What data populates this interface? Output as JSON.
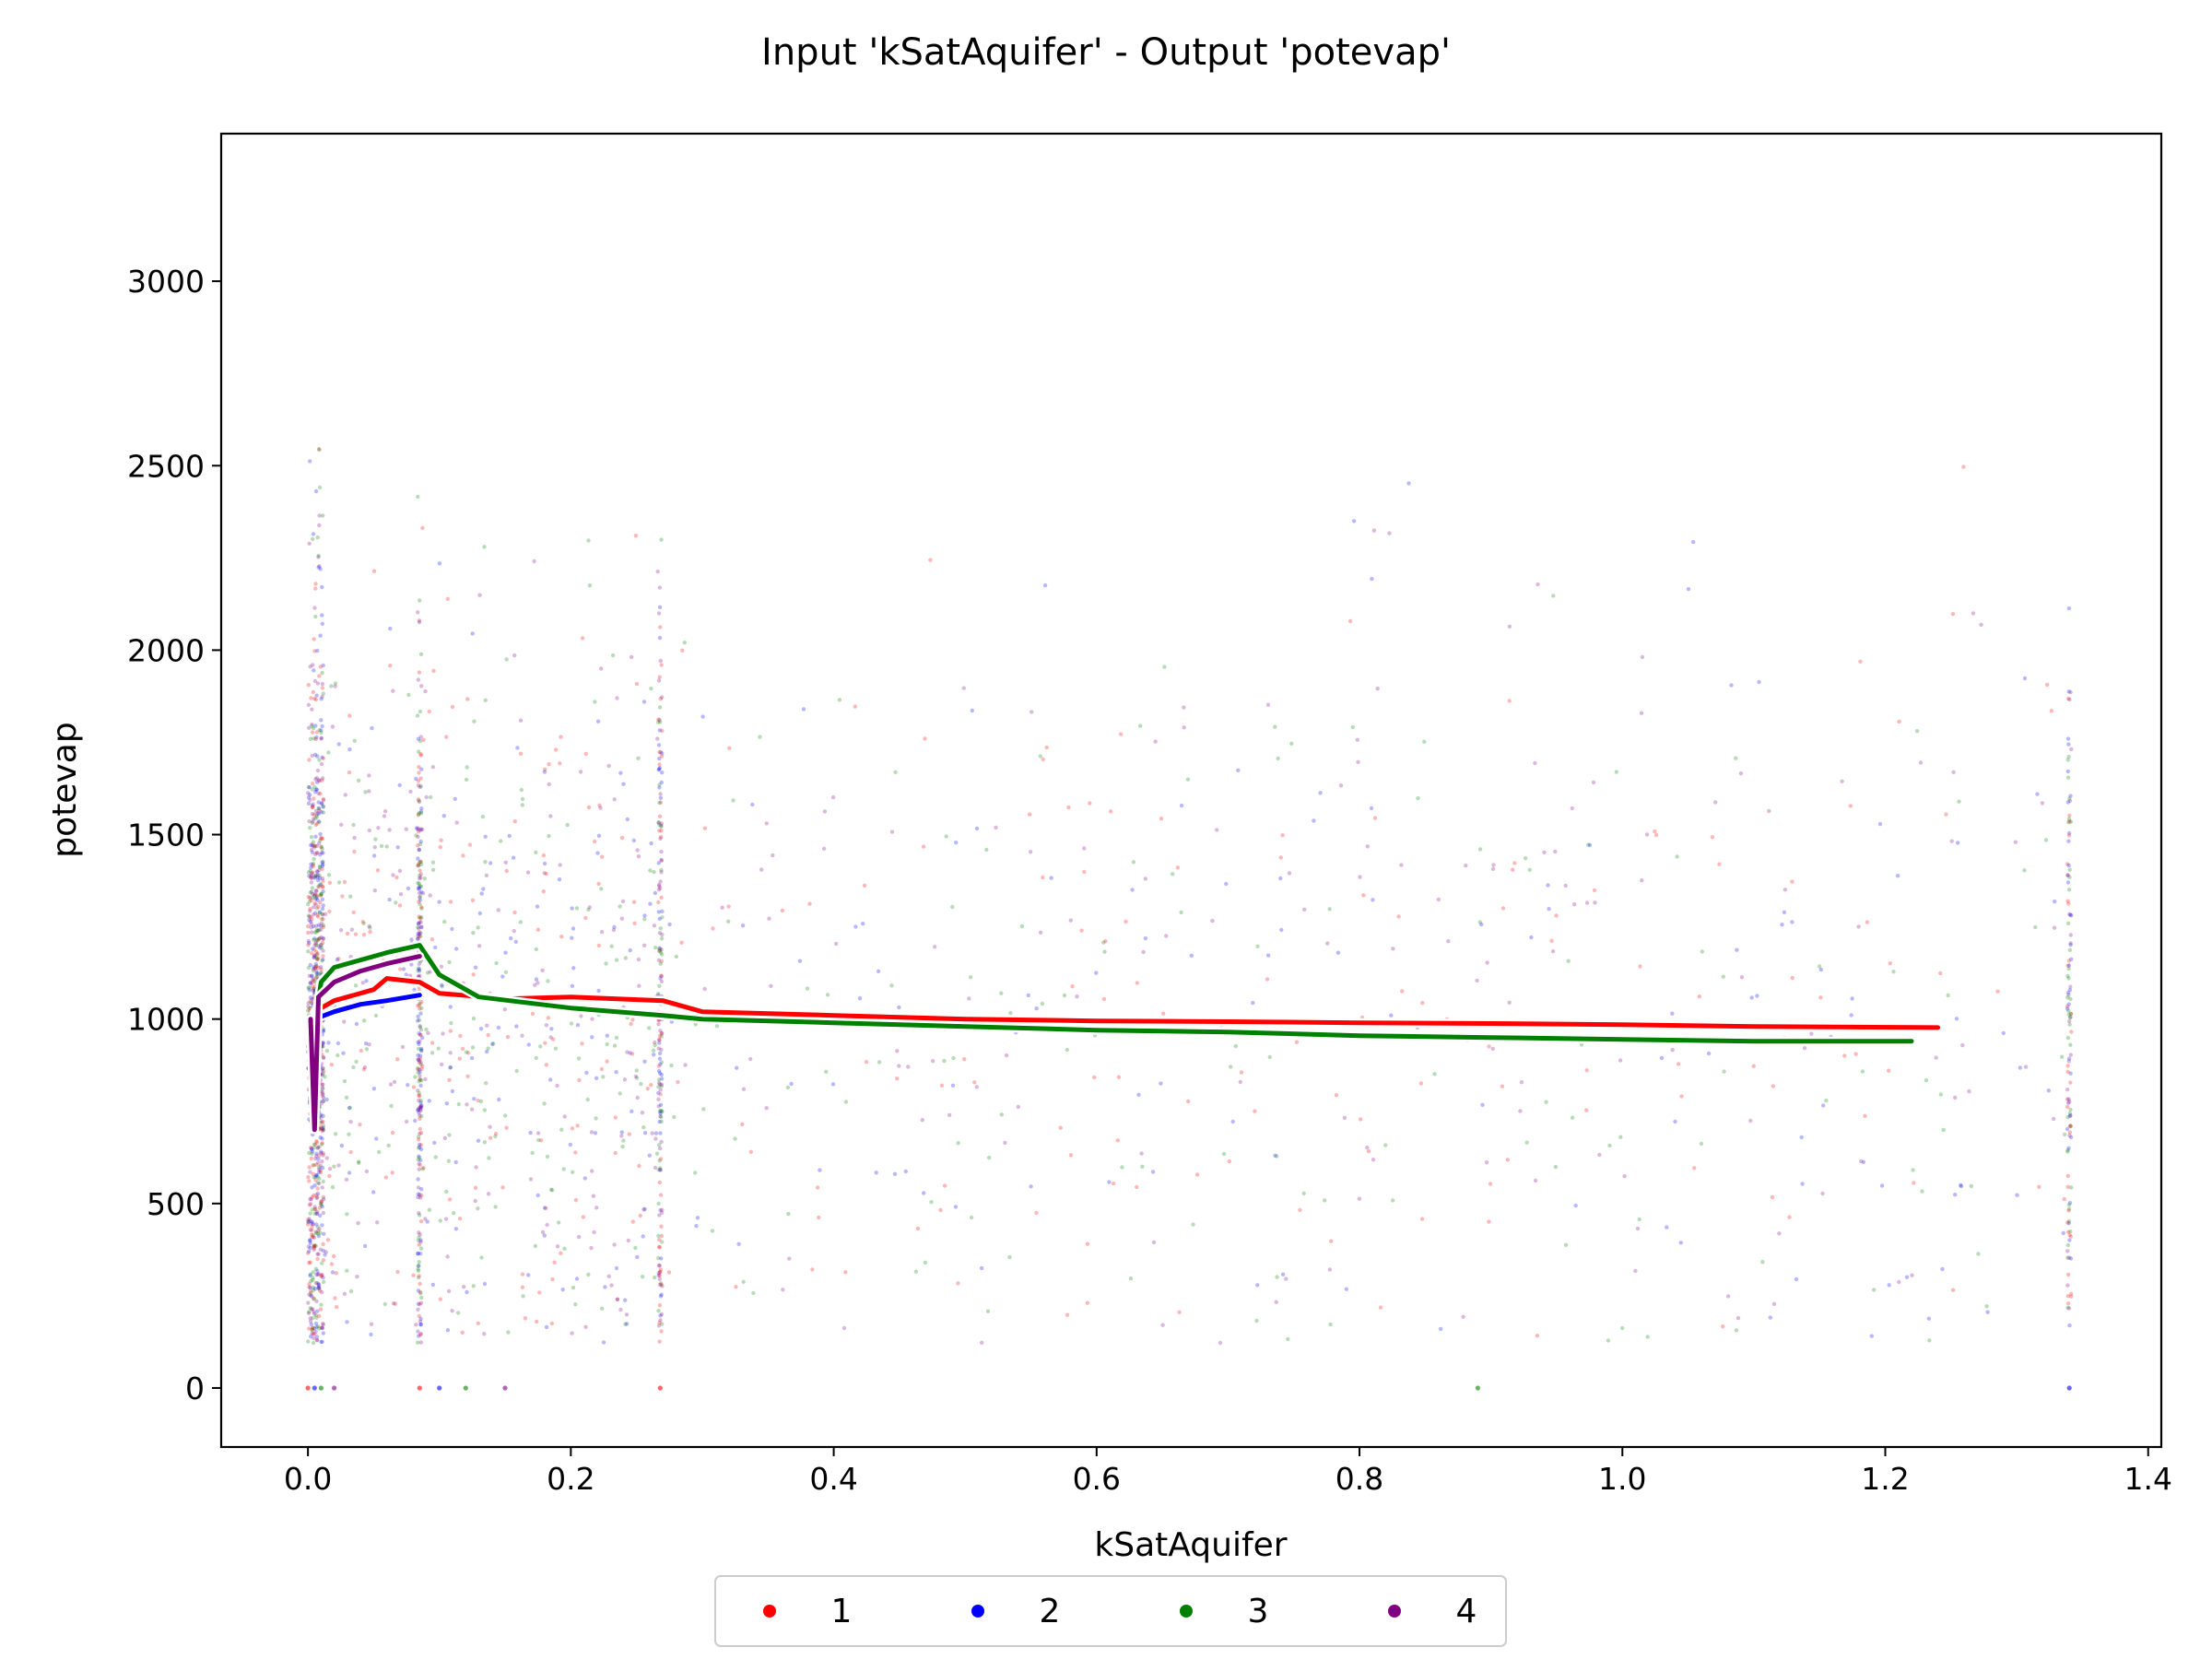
{
  "chart_data": {
    "type": "scatter",
    "title": "Input 'kSatAquifer' - Output 'potevap'",
    "xlabel": "kSatAquifer",
    "ylabel": "potevap",
    "xlim": [
      -0.066,
      1.41
    ],
    "ylim": [
      -160,
      3400
    ],
    "x_ticks": [
      0.0,
      0.2,
      0.4,
      0.6,
      0.8,
      1.0,
      1.2,
      1.4
    ],
    "x_tick_labels": [
      "0.0",
      "0.2",
      "0.4",
      "0.6",
      "0.8",
      "1.0",
      "1.2",
      "1.4"
    ],
    "y_ticks": [
      0,
      500,
      1000,
      1500,
      2000,
      2500,
      3000
    ],
    "y_tick_labels": [
      "0",
      "500",
      "1000",
      "1500",
      "2000",
      "2500",
      "3000"
    ],
    "grid": false,
    "legend_position": "bottom-center",
    "series": [
      {
        "name": "1",
        "color": "#ff0000",
        "trend": [
          [
            0.005,
            1020
          ],
          [
            0.02,
            1050
          ],
          [
            0.05,
            1080
          ],
          [
            0.06,
            1110
          ],
          [
            0.085,
            1100
          ],
          [
            0.1,
            1070
          ],
          [
            0.15,
            1055
          ],
          [
            0.2,
            1060
          ],
          [
            0.27,
            1050
          ],
          [
            0.3,
            1020
          ],
          [
            0.4,
            1010
          ],
          [
            0.5,
            1000
          ],
          [
            0.6,
            995
          ],
          [
            0.7,
            993
          ],
          [
            0.8,
            990
          ],
          [
            0.9,
            988
          ],
          [
            1.0,
            985
          ],
          [
            1.1,
            980
          ],
          [
            1.24,
            977
          ]
        ]
      },
      {
        "name": "2",
        "color": "#0000ff",
        "trend": [
          [
            0.005,
            1000
          ],
          [
            0.02,
            1020
          ],
          [
            0.04,
            1040
          ],
          [
            0.06,
            1050
          ],
          [
            0.085,
            1065
          ]
        ]
      },
      {
        "name": "3",
        "color": "#008000",
        "trend": [
          [
            0.005,
            980
          ],
          [
            0.01,
            1100
          ],
          [
            0.02,
            1140
          ],
          [
            0.04,
            1160
          ],
          [
            0.06,
            1180
          ],
          [
            0.085,
            1200
          ],
          [
            0.1,
            1120
          ],
          [
            0.13,
            1060
          ],
          [
            0.2,
            1030
          ],
          [
            0.27,
            1010
          ],
          [
            0.3,
            1000
          ],
          [
            0.4,
            990
          ],
          [
            0.5,
            980
          ],
          [
            0.6,
            970
          ],
          [
            0.7,
            965
          ],
          [
            0.8,
            955
          ],
          [
            0.9,
            950
          ],
          [
            1.0,
            945
          ],
          [
            1.1,
            940
          ],
          [
            1.22,
            940
          ]
        ]
      },
      {
        "name": "4",
        "color": "#800080",
        "trend": [
          [
            0.002,
            1000
          ],
          [
            0.005,
            700
          ],
          [
            0.008,
            1060
          ],
          [
            0.02,
            1100
          ],
          [
            0.04,
            1130
          ],
          [
            0.06,
            1150
          ],
          [
            0.085,
            1170
          ]
        ]
      }
    ]
  }
}
